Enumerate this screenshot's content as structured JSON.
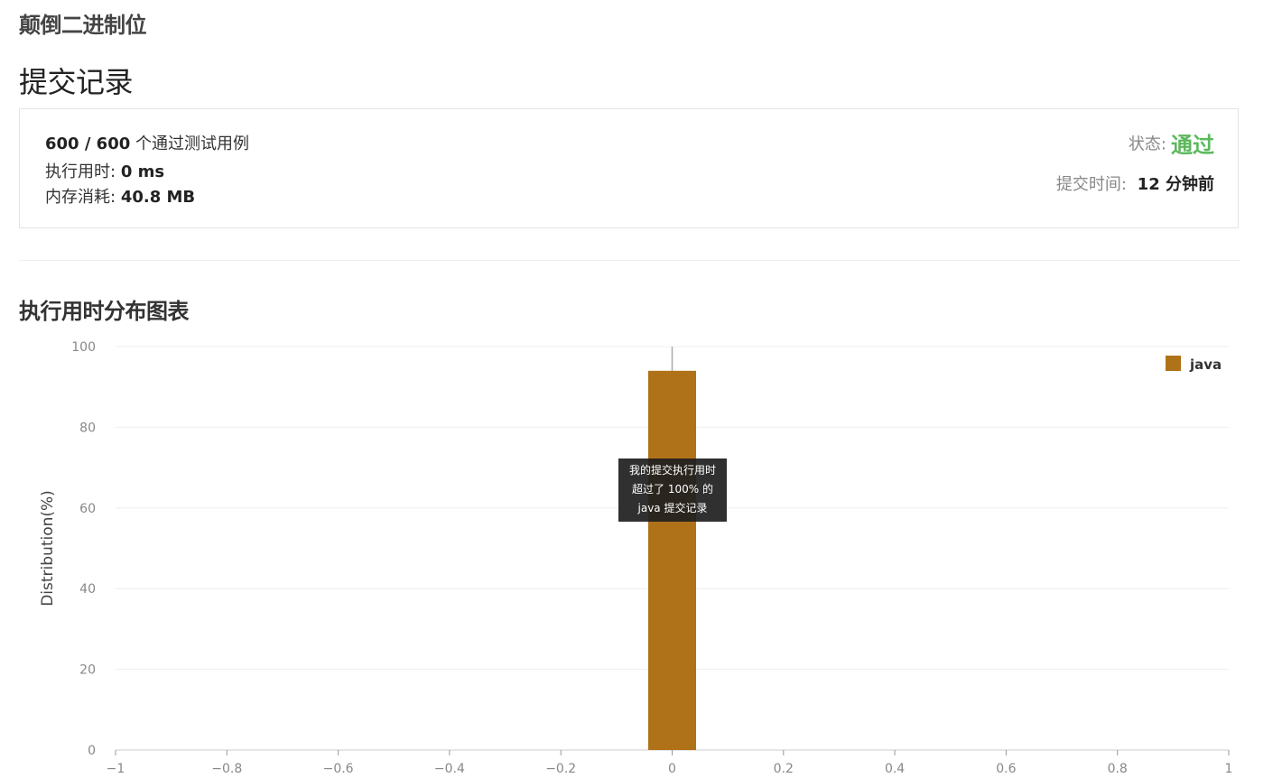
{
  "problem_title": "颠倒二进制位",
  "page_heading": "提交记录",
  "summary": {
    "tests_passed": "600 / 600",
    "tests_suffix": "个通过测试用例",
    "runtime_label": "执行用时:",
    "runtime_value": "0 ms",
    "memory_label": "内存消耗:",
    "memory_value": "40.8 MB",
    "status_label": "状态:",
    "status_value": "通过",
    "submit_time_label": "提交时间:",
    "submit_time_value": "12 分钟前"
  },
  "colors": {
    "status_green": "#5cb85c",
    "bar": "#b07219"
  },
  "chart_section_title": "执行用时分布图表",
  "tooltip": {
    "line1": "我的提交执行用时",
    "line2": "超过了 100% 的",
    "line3": "java 提交记录"
  },
  "chart_data": {
    "type": "bar",
    "ylabel": "Distribution(%)",
    "xlabel": "",
    "xlim": [
      -1,
      1
    ],
    "ylim": [
      0,
      100
    ],
    "x_ticks": [
      "−1",
      "−0.8",
      "−0.6",
      "−0.4",
      "−0.2",
      "0",
      "0.2",
      "0.4",
      "0.6",
      "0.8",
      "1"
    ],
    "x_tick_values": [
      -1,
      -0.8,
      -0.6,
      -0.4,
      -0.2,
      0,
      0.2,
      0.4,
      0.6,
      0.8,
      1
    ],
    "y_ticks": [
      0,
      20,
      40,
      60,
      80,
      100
    ],
    "grid": true,
    "legend_position": "top-right",
    "series": [
      {
        "name": "java",
        "color": "#b07219",
        "points": [
          {
            "x": 0,
            "y": 94
          }
        ]
      }
    ],
    "marker_x": 0
  }
}
